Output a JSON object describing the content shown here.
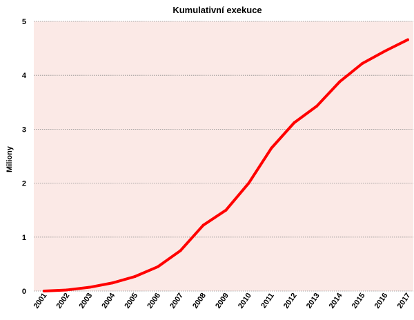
{
  "chart_data": {
    "type": "line",
    "title": "Kumulativní  exekuce",
    "xlabel": "",
    "ylabel": "Miliony",
    "ylim": [
      0,
      5
    ],
    "yticks": [
      "0",
      "1",
      "2",
      "3",
      "4",
      "5"
    ],
    "grid": true,
    "legend": "none",
    "plot_background": "#fbe9e6",
    "series_color": "#ff0000",
    "gridline_color": "#8a8a8a",
    "x": [
      "2001",
      "2002",
      "2003",
      "2004",
      "2005",
      "2006",
      "2007",
      "2008",
      "2009",
      "2010",
      "2011",
      "2012",
      "2013",
      "2014",
      "2015",
      "2016",
      "2017"
    ],
    "series": [
      {
        "values": [
          0.0,
          0.02,
          0.07,
          0.15,
          0.27,
          0.45,
          0.75,
          1.22,
          1.5,
          2.0,
          2.65,
          3.12,
          3.43,
          3.88,
          4.22,
          4.45,
          4.66
        ]
      }
    ]
  }
}
